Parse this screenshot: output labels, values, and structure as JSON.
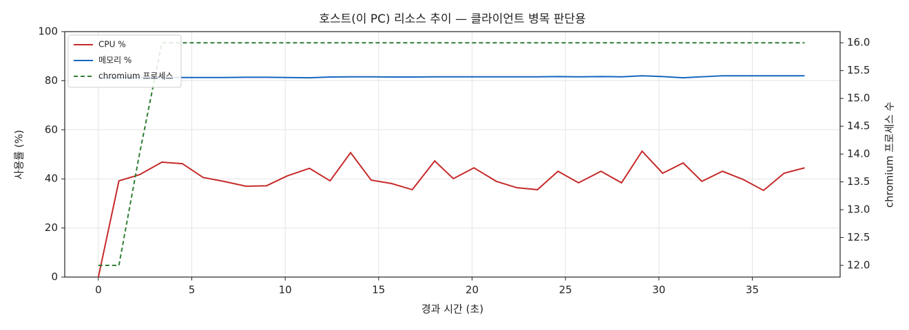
{
  "chart_data": {
    "type": "line",
    "title": "호스트(이 PC) 리소스 추이 — 클라이언트 병목 판단용",
    "xlabel": "경과 시간 (초)",
    "ylabel": "사용률 (%)",
    "y2label": "chromium 프로세스 수",
    "x": [
      0,
      1.1,
      2.2,
      3.4,
      4.5,
      5.6,
      6.7,
      7.9,
      9.0,
      10.1,
      11.3,
      12.4,
      13.5,
      14.6,
      15.7,
      16.8,
      18.0,
      19.0,
      20.1,
      21.3,
      22.4,
      23.5,
      24.6,
      25.7,
      26.9,
      28.0,
      29.1,
      30.2,
      31.3,
      32.3,
      33.4,
      34.5,
      35.6,
      36.7,
      37.8
    ],
    "series": [
      {
        "name": "CPU %",
        "color": "#c62828",
        "values": [
          0,
          39.2,
          41.7,
          46.8,
          46.2,
          40.6,
          39,
          37,
          37.2,
          41.2,
          44.3,
          39.2,
          50.7,
          39.5,
          38.1,
          35.6,
          47.3,
          40.1,
          44.5,
          39,
          36.4,
          35.6,
          43.1,
          38.4,
          43.1,
          38.4,
          51.3,
          42.3,
          46.5,
          39,
          43.1,
          39.8,
          35.3,
          42.3,
          44.5
        ]
      },
      {
        "name": "메모리 %",
        "color": "#1565c0",
        "values": [
          81.2,
          81.2,
          81.3,
          81.3,
          81.3,
          81.3,
          81.3,
          81.4,
          81.4,
          81.3,
          81.2,
          81.5,
          81.6,
          81.6,
          81.5,
          81.5,
          81.6,
          81.6,
          81.6,
          81.6,
          81.6,
          81.6,
          81.7,
          81.6,
          81.7,
          81.6,
          82.0,
          81.7,
          81.2,
          81.6,
          82.0,
          82.0,
          82.0,
          82.0,
          82.0
        ]
      },
      {
        "name": "chromium 프로세스",
        "color": "#2e7d32",
        "axis": "y2",
        "linestyle": "dashed",
        "values": [
          12,
          12,
          14,
          16,
          16,
          16,
          16,
          16,
          16,
          16,
          16,
          16,
          16,
          16,
          16,
          16,
          16,
          16,
          16,
          16,
          16,
          16,
          16,
          16,
          16,
          16,
          16,
          16,
          16,
          16,
          16,
          16,
          16,
          16,
          16
        ]
      }
    ],
    "xlim": [
      -1.8,
      39.7
    ],
    "xticks": [
      0,
      5,
      10,
      15,
      20,
      25,
      30,
      35
    ],
    "ylim": [
      0,
      100
    ],
    "yticks": [
      0,
      20,
      40,
      60,
      80,
      100
    ],
    "y2lim": [
      11.79,
      16.2
    ],
    "y2ticks": [
      {
        "value": 12,
        "label": "12.0"
      },
      12.5,
      {
        "value": 13,
        "label": "13.0"
      },
      13.5,
      {
        "value": 14,
        "label": "14.0"
      },
      14.5,
      {
        "value": 15,
        "label": "15.0"
      },
      15.5,
      {
        "value": 16,
        "label": "16.0"
      }
    ],
    "grid": true,
    "legend": "upper left"
  }
}
